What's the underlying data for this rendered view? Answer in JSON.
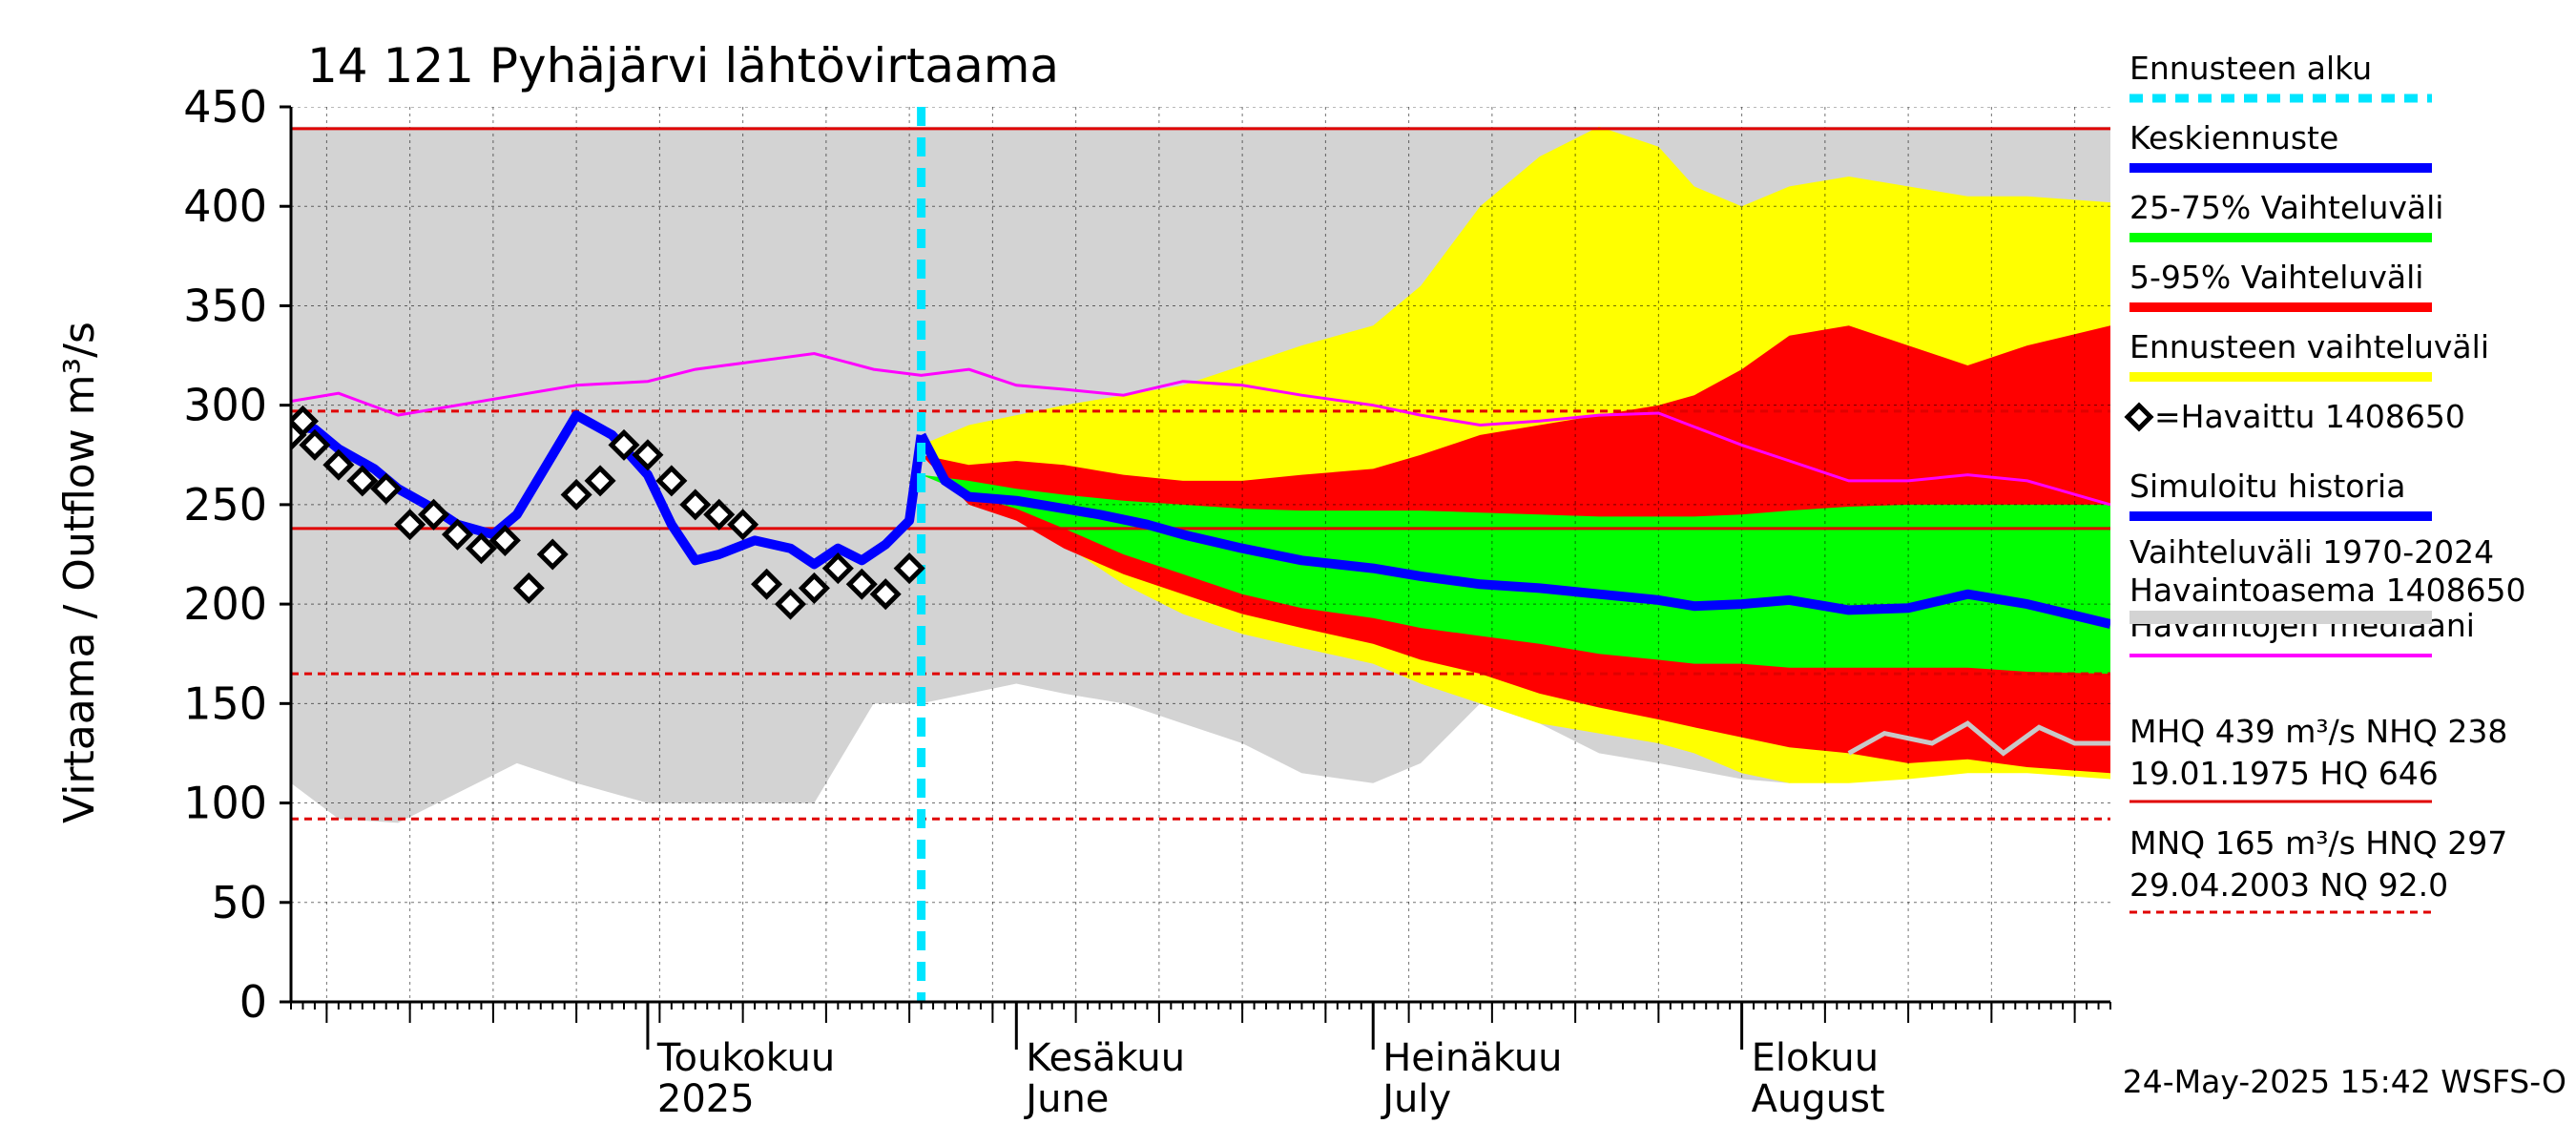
{
  "chart_data": {
    "type": "area",
    "title": "14 121 Pyhäjärvi lähtövirtaama",
    "ylabel": "Virtaama / Outflow    m³/s",
    "ylim": [
      0,
      450
    ],
    "yticks": [
      0,
      50,
      100,
      150,
      200,
      250,
      300,
      350,
      400,
      450
    ],
    "xlim": [
      "2025-04-01",
      "2025-09-01"
    ],
    "x_major": [
      {
        "date": "2025-05-01",
        "fi": "Toukokuu",
        "en": "2025"
      },
      {
        "date": "2025-06-01",
        "fi": "Kesäkuu",
        "en": "June"
      },
      {
        "date": "2025-07-01",
        "fi": "Heinäkuu",
        "en": "July"
      },
      {
        "date": "2025-08-01",
        "fi": "Elokuu",
        "en": "August"
      }
    ],
    "forecast_start": "2025-05-24",
    "reference_lines": [
      {
        "label": "MHQ",
        "value": 439,
        "style": "solid"
      },
      {
        "label": "NHQ",
        "value": 238,
        "style": "solid"
      },
      {
        "label": "MNQ",
        "value": 165,
        "style": "dashed"
      },
      {
        "label": "HNQ",
        "value": 297,
        "style": "dashed"
      },
      {
        "label": "NQ",
        "value": 92.0,
        "style": "dashed"
      }
    ],
    "historical_range": {
      "name": "Vaihteluväli 1970-2024",
      "x": [
        "2025-04-01",
        "2025-04-05",
        "2025-04-10",
        "2025-04-15",
        "2025-04-20",
        "2025-04-25",
        "2025-05-01",
        "2025-05-05",
        "2025-05-10",
        "2025-05-15",
        "2025-05-20",
        "2025-05-24",
        "2025-05-28",
        "2025-06-01",
        "2025-06-05",
        "2025-06-10",
        "2025-06-15",
        "2025-06-20",
        "2025-06-25",
        "2025-07-01",
        "2025-07-05",
        "2025-07-10",
        "2025-07-15",
        "2025-07-20",
        "2025-07-25",
        "2025-08-01",
        "2025-08-05",
        "2025-08-10",
        "2025-08-15",
        "2025-08-20",
        "2025-08-25",
        "2025-09-01"
      ],
      "low": [
        110,
        92,
        90,
        105,
        120,
        110,
        100,
        100,
        100,
        100,
        150,
        150,
        155,
        160,
        155,
        150,
        140,
        130,
        115,
        110,
        120,
        150,
        140,
        125,
        120,
        112,
        110,
        115,
        120,
        125,
        135,
        140
      ],
      "high": [
        440,
        440,
        440,
        440,
        440,
        440,
        440,
        440,
        440,
        440,
        440,
        440,
        440,
        440,
        440,
        440,
        440,
        440,
        440,
        440,
        440,
        440,
        440,
        440,
        440,
        440,
        440,
        440,
        440,
        440,
        440,
        440
      ]
    },
    "forecast_band_total": {
      "name": "Ennusteen vaihteluväli",
      "x": [
        "2025-05-24",
        "2025-05-28",
        "2025-06-01",
        "2025-06-05",
        "2025-06-10",
        "2025-06-15",
        "2025-06-20",
        "2025-06-25",
        "2025-07-01",
        "2025-07-05",
        "2025-07-10",
        "2025-07-15",
        "2025-07-20",
        "2025-07-25",
        "2025-07-28",
        "2025-08-01",
        "2025-08-05",
        "2025-08-10",
        "2025-08-15",
        "2025-08-20",
        "2025-08-25",
        "2025-09-01"
      ],
      "low": [
        280,
        255,
        245,
        230,
        210,
        195,
        185,
        178,
        170,
        160,
        150,
        140,
        135,
        130,
        125,
        115,
        110,
        110,
        112,
        115,
        115,
        112
      ],
      "high": [
        280,
        290,
        295,
        300,
        305,
        310,
        320,
        330,
        340,
        360,
        400,
        425,
        440,
        430,
        410,
        400,
        410,
        415,
        410,
        405,
        405,
        402
      ]
    },
    "forecast_band_5_95": {
      "name": "5-95% Vaihteluväli",
      "x": [
        "2025-05-24",
        "2025-05-28",
        "2025-06-01",
        "2025-06-05",
        "2025-06-10",
        "2025-06-15",
        "2025-06-20",
        "2025-06-25",
        "2025-07-01",
        "2025-07-05",
        "2025-07-10",
        "2025-07-15",
        "2025-07-20",
        "2025-07-25",
        "2025-07-28",
        "2025-08-01",
        "2025-08-05",
        "2025-08-10",
        "2025-08-15",
        "2025-08-20",
        "2025-08-25",
        "2025-09-01"
      ],
      "low": [
        275,
        250,
        242,
        228,
        215,
        205,
        195,
        188,
        180,
        172,
        165,
        155,
        148,
        142,
        138,
        133,
        128,
        125,
        120,
        122,
        118,
        115
      ],
      "high": [
        275,
        270,
        272,
        270,
        265,
        262,
        262,
        265,
        268,
        275,
        285,
        290,
        295,
        300,
        305,
        318,
        335,
        340,
        330,
        320,
        330,
        340
      ]
    },
    "forecast_band_25_75": {
      "name": "25-75% Vaihteluväli",
      "x": [
        "2025-05-24",
        "2025-05-28",
        "2025-06-01",
        "2025-06-05",
        "2025-06-10",
        "2025-06-15",
        "2025-06-20",
        "2025-06-25",
        "2025-07-01",
        "2025-07-05",
        "2025-07-10",
        "2025-07-15",
        "2025-07-20",
        "2025-07-25",
        "2025-07-28",
        "2025-08-01",
        "2025-08-05",
        "2025-08-10",
        "2025-08-15",
        "2025-08-20",
        "2025-08-25",
        "2025-09-01"
      ],
      "low": [
        265,
        255,
        248,
        238,
        225,
        215,
        205,
        198,
        193,
        188,
        184,
        180,
        175,
        172,
        170,
        170,
        168,
        168,
        168,
        168,
        166,
        165
      ],
      "high": [
        265,
        262,
        258,
        255,
        252,
        250,
        248,
        247,
        247,
        247,
        246,
        245,
        244,
        244,
        244,
        245,
        247,
        249,
        250,
        250,
        250,
        250
      ]
    },
    "series": [
      {
        "name": "Keskiennuste",
        "color": "#0000ff",
        "x": [
          "2025-05-24",
          "2025-05-26",
          "2025-05-28",
          "2025-06-01",
          "2025-06-05",
          "2025-06-08",
          "2025-06-12",
          "2025-06-15",
          "2025-06-20",
          "2025-06-25",
          "2025-07-01",
          "2025-07-05",
          "2025-07-10",
          "2025-07-15",
          "2025-07-20",
          "2025-07-25",
          "2025-07-28",
          "2025-08-01",
          "2025-08-05",
          "2025-08-10",
          "2025-08-15",
          "2025-08-20",
          "2025-08-25",
          "2025-09-01"
        ],
        "y": [
          285,
          262,
          254,
          252,
          248,
          245,
          240,
          235,
          228,
          222,
          218,
          214,
          210,
          208,
          205,
          202,
          199,
          200,
          202,
          197,
          198,
          205,
          200,
          190
        ]
      },
      {
        "name": "Simuloitu historia",
        "color": "#0000ff",
        "x": [
          "2025-04-01",
          "2025-04-03",
          "2025-04-05",
          "2025-04-08",
          "2025-04-10",
          "2025-04-13",
          "2025-04-15",
          "2025-04-18",
          "2025-04-20",
          "2025-04-23",
          "2025-04-25",
          "2025-04-28",
          "2025-05-01",
          "2025-05-03",
          "2025-05-05",
          "2025-05-07",
          "2025-05-10",
          "2025-05-13",
          "2025-05-15",
          "2025-05-17",
          "2025-05-19",
          "2025-05-21",
          "2025-05-23",
          "2025-05-24"
        ],
        "y": [
          290,
          288,
          278,
          268,
          258,
          248,
          240,
          235,
          245,
          275,
          295,
          285,
          265,
          240,
          222,
          225,
          232,
          228,
          220,
          228,
          222,
          230,
          242,
          285
        ]
      },
      {
        "name": "Havaintojen mediaani",
        "color": "#ff00ff",
        "x": [
          "2025-04-01",
          "2025-04-05",
          "2025-04-10",
          "2025-04-15",
          "2025-04-20",
          "2025-04-25",
          "2025-05-01",
          "2025-05-05",
          "2025-05-10",
          "2025-05-15",
          "2025-05-20",
          "2025-05-24",
          "2025-05-28",
          "2025-06-01",
          "2025-06-05",
          "2025-06-10",
          "2025-06-15",
          "2025-06-20",
          "2025-06-25",
          "2025-07-01",
          "2025-07-05",
          "2025-07-10",
          "2025-07-15",
          "2025-07-20",
          "2025-07-25",
          "2025-08-01",
          "2025-08-05",
          "2025-08-10",
          "2025-08-15",
          "2025-08-20",
          "2025-08-25",
          "2025-09-01"
        ],
        "y": [
          302,
          306,
          295,
          300,
          305,
          310,
          312,
          318,
          322,
          326,
          318,
          315,
          318,
          310,
          308,
          305,
          312,
          310,
          305,
          300,
          295,
          290,
          292,
          295,
          296,
          280,
          272,
          262,
          262,
          265,
          262,
          250
        ]
      }
    ],
    "observed": {
      "name": "=Havaittu 1408650",
      "x": [
        "2025-04-01",
        "2025-04-02",
        "2025-04-03",
        "2025-04-05",
        "2025-04-07",
        "2025-04-09",
        "2025-04-11",
        "2025-04-13",
        "2025-04-15",
        "2025-04-17",
        "2025-04-19",
        "2025-04-21",
        "2025-04-23",
        "2025-04-25",
        "2025-04-27",
        "2025-04-29",
        "2025-05-01",
        "2025-05-03",
        "2025-05-05",
        "2025-05-07",
        "2025-05-09",
        "2025-05-11",
        "2025-05-13",
        "2025-05-15",
        "2025-05-17",
        "2025-05-19",
        "2025-05-21",
        "2025-05-23"
      ],
      "y": [
        285,
        292,
        280,
        270,
        262,
        258,
        240,
        245,
        235,
        228,
        232,
        208,
        225,
        255,
        262,
        280,
        275,
        262,
        250,
        245,
        240,
        210,
        200,
        208,
        218,
        210,
        205,
        218
      ]
    },
    "gray_line": {
      "x": [
        "2025-08-10",
        "2025-08-13",
        "2025-08-17",
        "2025-08-20",
        "2025-08-23",
        "2025-08-26",
        "2025-08-29",
        "2025-09-01"
      ],
      "y": [
        125,
        135,
        130,
        140,
        125,
        138,
        130,
        130
      ]
    }
  },
  "legend": [
    {
      "label": "Ennusteen alku",
      "color": "#00e5ff",
      "style": "dashed"
    },
    {
      "label": "Keskiennuste",
      "color": "#0000ff",
      "style": "solid"
    },
    {
      "label": "25-75% Vaihteluväli",
      "color": "#00ff00",
      "style": "solid"
    },
    {
      "label": "5-95% Vaihteluväli",
      "color": "#ff0000",
      "style": "solid"
    },
    {
      "label": "Ennusteen vaihteluväli",
      "color": "#ffff00",
      "style": "solid"
    },
    {
      "label": "=Havaittu 1408650",
      "color": "#000000",
      "style": "marker"
    },
    {
      "label": "Simuloitu historia",
      "color": "#0000ff",
      "style": "solid"
    },
    {
      "label": "Vaihteluväli 1970-2024",
      "color": "#d3d3d3",
      "style": "solid"
    },
    {
      "label": "Havaintojen mediaani",
      "color": "#ff00ff",
      "style": "solid"
    }
  ],
  "legend_extra": {
    "station_line": " Havaintoasema 1408650",
    "mhq_line1": "MHQ  439 m³/s NHQ  238",
    "mhq_line2": "19.01.1975 HQ  646",
    "mnq_line1": "MNQ  165 m³/s HNQ  297",
    "mnq_line2": "29.04.2003 NQ 92.0"
  },
  "timestamp": "24-May-2025 15:42 WSFS-O",
  "colors": {
    "gray_band": "#d3d3d3",
    "yellow": "#ffff00",
    "red": "#ff0000",
    "green": "#00ff00",
    "blue": "#0000ff",
    "magenta": "#ff00ff",
    "cyan": "#00e5ff",
    "refline": "#e00000",
    "gray_line": "#c8c8c8"
  }
}
